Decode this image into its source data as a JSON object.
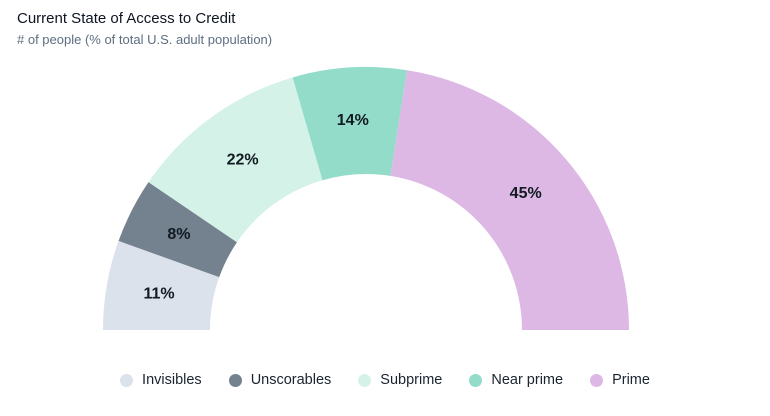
{
  "header": {
    "title": "Current State of Access to Credit",
    "subtitle": "# of people (% of total U.S. adult population)"
  },
  "chart_data": {
    "type": "pie",
    "variant": "half-donut",
    "title": "Current State of Access to Credit",
    "subtitle": "# of people (% of total U.S. adult population)",
    "categories": [
      "Invisibles",
      "Unscorables",
      "Subprime",
      "Near prime",
      "Prime"
    ],
    "values": [
      11,
      8,
      22,
      14,
      45
    ],
    "labels": [
      "11%",
      "8%",
      "22%",
      "14%",
      "45%"
    ],
    "unit": "%",
    "colors": [
      "#dbe2ec",
      "#74828f",
      "#d5f2e8",
      "#92dcc9",
      "#ddb8e5"
    ],
    "start_angle_deg": 180,
    "end_angle_deg": 0,
    "direction": "clockwise",
    "total": 100,
    "legend_position": "bottom",
    "background": "#ffffff",
    "title_color": "#0d1422",
    "subtitle_color": "#5d6e82",
    "label_color": "#121a22",
    "legend_text_color": "#1a2430"
  }
}
